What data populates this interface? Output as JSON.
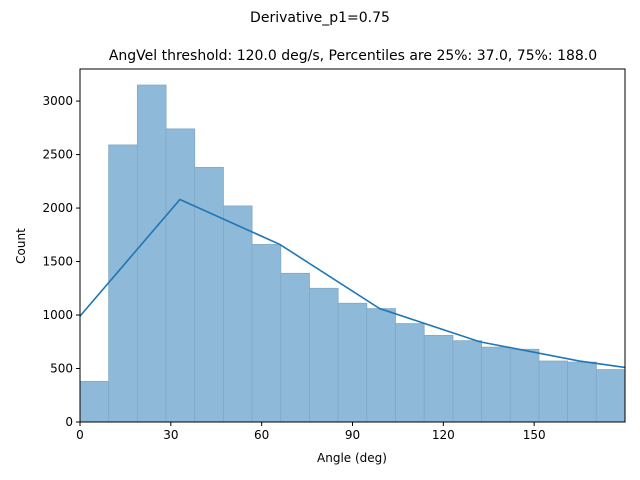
{
  "chart_data": {
    "type": "bar",
    "suptitle": "Derivative_p1=0.75",
    "title": "AngVel threshold: 120.0 deg/s, Percentiles are 25%: 37.0, 75%: 188.0",
    "xlabel": "Angle (deg)",
    "ylabel": "Count",
    "xlim": [
      0,
      180
    ],
    "ylim": [
      0,
      3300
    ],
    "xticks": [
      0,
      30,
      60,
      90,
      120,
      150
    ],
    "yticks": [
      0,
      500,
      1000,
      1500,
      2000,
      2500,
      3000
    ],
    "bin_edges": [
      0,
      9.47,
      18.95,
      28.42,
      37.89,
      47.37,
      56.84,
      66.32,
      75.79,
      85.26,
      94.74,
      104.21,
      113.68,
      123.16,
      132.63,
      142.11,
      151.58,
      161.05,
      170.53,
      180
    ],
    "counts": [
      380,
      2590,
      3150,
      2740,
      2380,
      2020,
      1660,
      1390,
      1250,
      1110,
      1060,
      920,
      810,
      760,
      700,
      680,
      570,
      560,
      490
    ],
    "bar_color": "#8fb9d8",
    "bar_edge": "#7fa9c4",
    "line_color": "#1f77b4",
    "line_x": [
      0,
      33,
      66,
      99,
      132,
      165,
      180
    ],
    "line_y": [
      990,
      2080,
      1660,
      1060,
      750,
      570,
      510
    ]
  }
}
